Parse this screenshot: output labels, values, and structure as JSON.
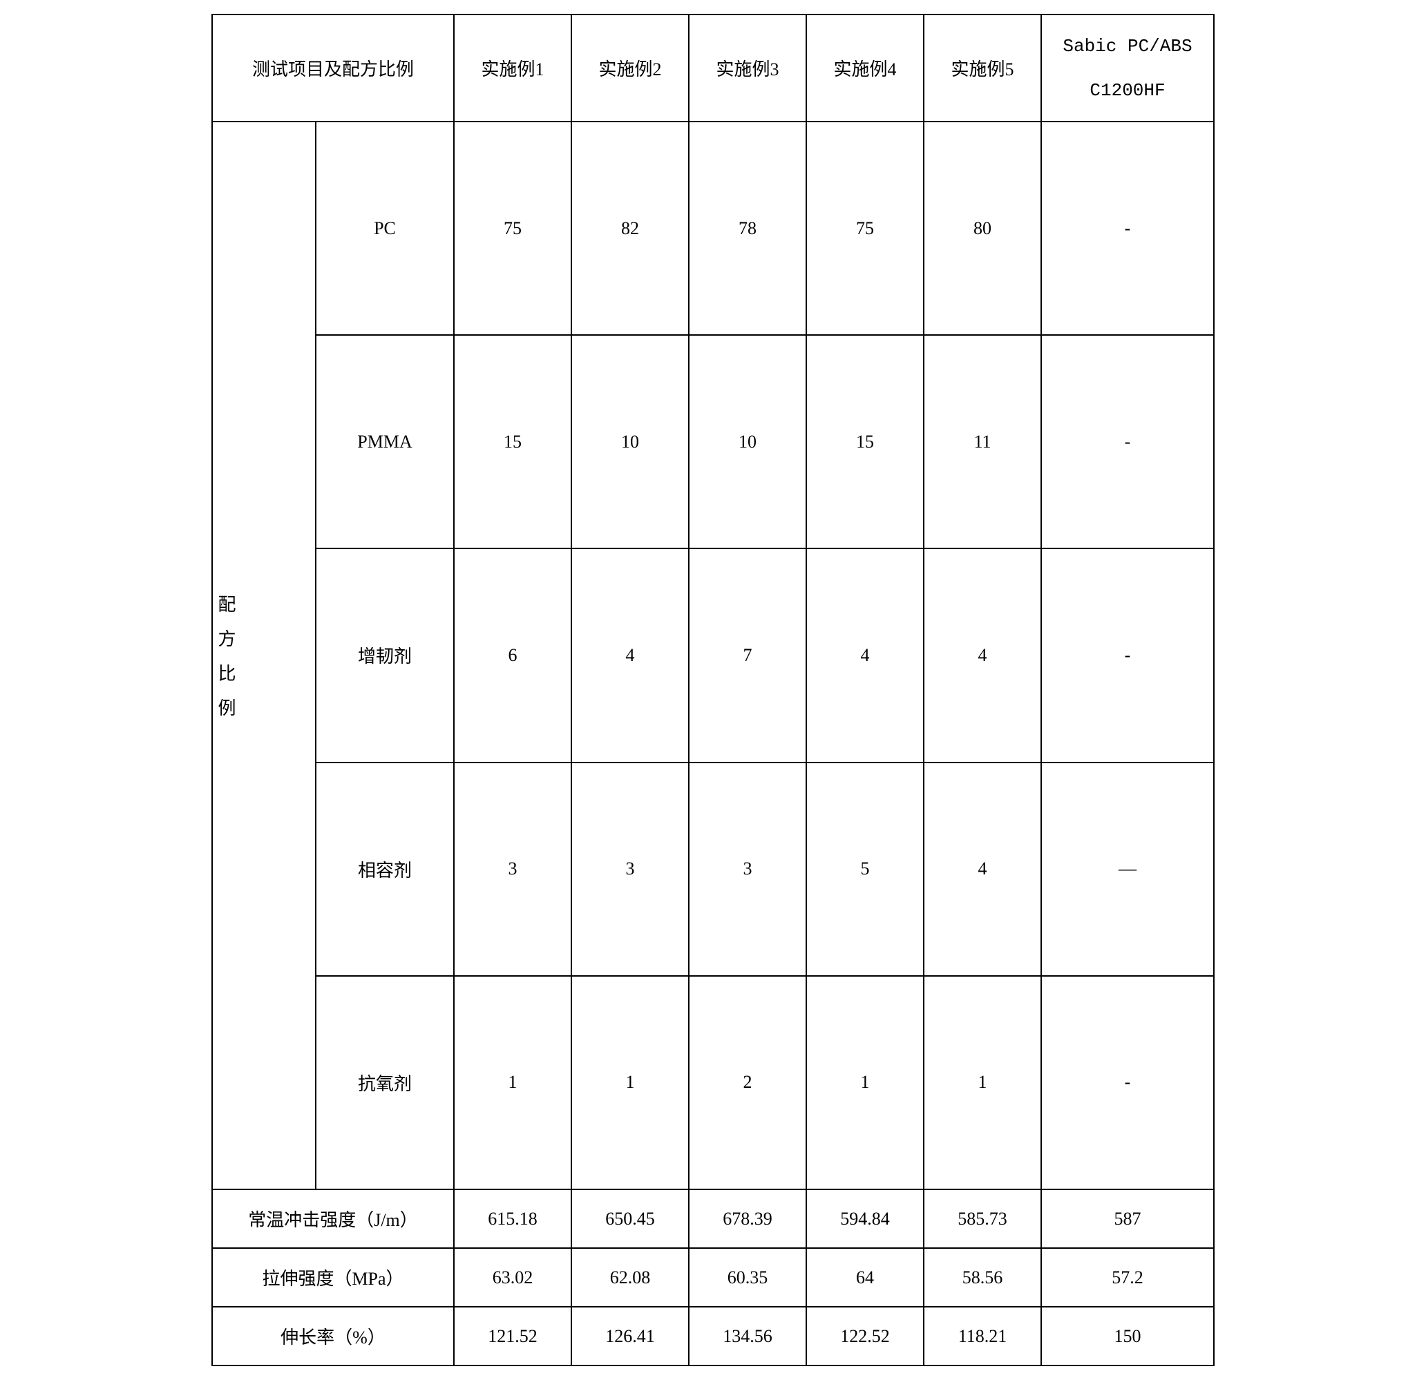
{
  "table": {
    "border_color": "#000000",
    "background_color": "#ffffff",
    "text_color": "#000000",
    "font_family_cjk": "SimSun",
    "font_family_latin": "Times New Roman",
    "font_family_mono": "Courier New",
    "base_font_size": 26,
    "columns": {
      "header_wide_width": 280,
      "data_col_width": 170,
      "last_col_width": 250,
      "row_group_width": 80,
      "row_label_width": 200
    },
    "row_heights": {
      "header": 155,
      "data": 85
    },
    "headers": {
      "main_label": "测试项目及配方比例",
      "cols": [
        "实施例1",
        "实施例2",
        "实施例3",
        "实施例4",
        "实施例5"
      ],
      "last_col_line1": "Sabic PC/ABS",
      "last_col_line2": "C1200HF"
    },
    "row_group_label": "配方比例",
    "formula_rows": [
      {
        "label": "PC",
        "latin": true,
        "values": [
          "75",
          "82",
          "78",
          "75",
          "80",
          "-"
        ]
      },
      {
        "label": "PMMA",
        "latin": true,
        "values": [
          "15",
          "10",
          "10",
          "15",
          "11",
          "-"
        ]
      },
      {
        "label": "增韧剂",
        "latin": false,
        "values": [
          "6",
          "4",
          "7",
          "4",
          "4",
          "-"
        ]
      },
      {
        "label": "相容剂",
        "latin": false,
        "values": [
          "3",
          "3",
          "3",
          "5",
          "4",
          "—"
        ]
      },
      {
        "label": "抗氧剂",
        "latin": false,
        "values": [
          "1",
          "1",
          "2",
          "1",
          "1",
          "-"
        ]
      }
    ],
    "property_rows": [
      {
        "label": "常温冲击强度（J/m）",
        "values": [
          "615.18",
          "650.45",
          "678.39",
          "594.84",
          "585.73",
          "587"
        ]
      },
      {
        "label": "拉伸强度（MPa）",
        "values": [
          "63.02",
          "62.08",
          "60.35",
          "64",
          "58.56",
          "57.2"
        ]
      },
      {
        "label": "伸长率（%）",
        "values": [
          "121.52",
          "126.41",
          "134.56",
          "122.52",
          "118.21",
          "150"
        ]
      }
    ]
  }
}
